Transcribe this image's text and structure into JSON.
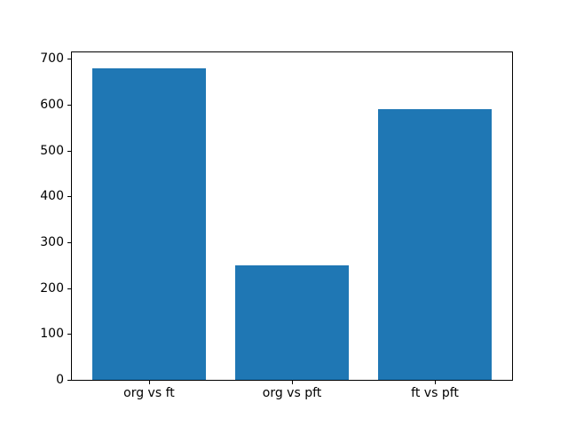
{
  "chart_data": {
    "type": "bar",
    "title": "",
    "xlabel": "",
    "ylabel": "",
    "categories": [
      "org vs ft",
      "org vs pft",
      "ft vs pft"
    ],
    "values": [
      680,
      250,
      590
    ],
    "yticks": [
      0,
      100,
      200,
      300,
      400,
      500,
      600,
      700
    ],
    "ylim": [
      0,
      714
    ],
    "xlim": [
      -0.54,
      2.54
    ],
    "bar_width": 0.8,
    "bar_color": "#1f77b4",
    "grid": false,
    "legend": null,
    "background": "#ffffff",
    "spine_color": "#000000"
  }
}
